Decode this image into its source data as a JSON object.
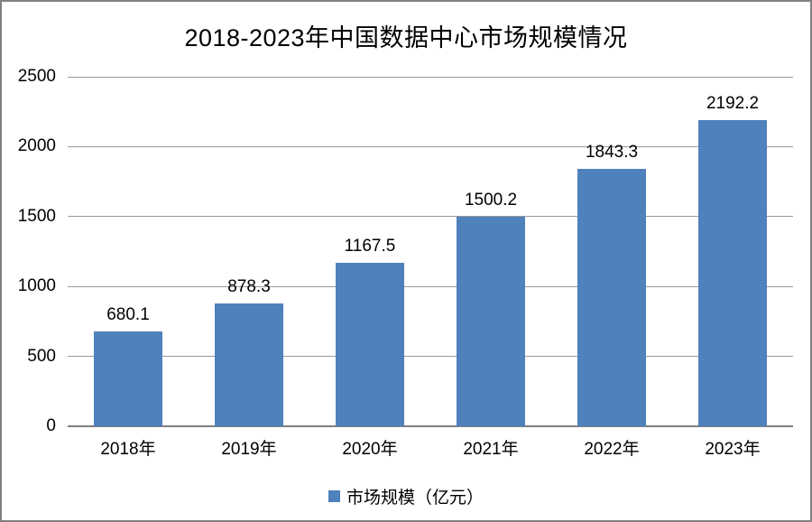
{
  "chart_data": {
    "type": "bar",
    "title": "2018-2023年中国数据中心市场规模情况",
    "categories": [
      "2018年",
      "2019年",
      "2020年",
      "2021年",
      "2022年",
      "2023年"
    ],
    "series": [
      {
        "name": "市场规模（亿元）",
        "values": [
          680.1,
          878.3,
          1167.5,
          1500.2,
          1843.3,
          2192.2
        ]
      }
    ],
    "data_labels": [
      "680.1",
      "878.3",
      "1167.5",
      "1500.2",
      "1843.3",
      "2192.2"
    ],
    "yticks": [
      0,
      500,
      1000,
      1500,
      2000,
      2500
    ],
    "ylim": [
      0,
      2500
    ],
    "xlabel": "",
    "ylabel": "",
    "grid": true,
    "legend_position": "bottom",
    "bar_color": "#4F81BD",
    "gridline_color": "#9a9a9a",
    "axis_color": "#7f7f7f",
    "frame_border_color": "#808080"
  }
}
